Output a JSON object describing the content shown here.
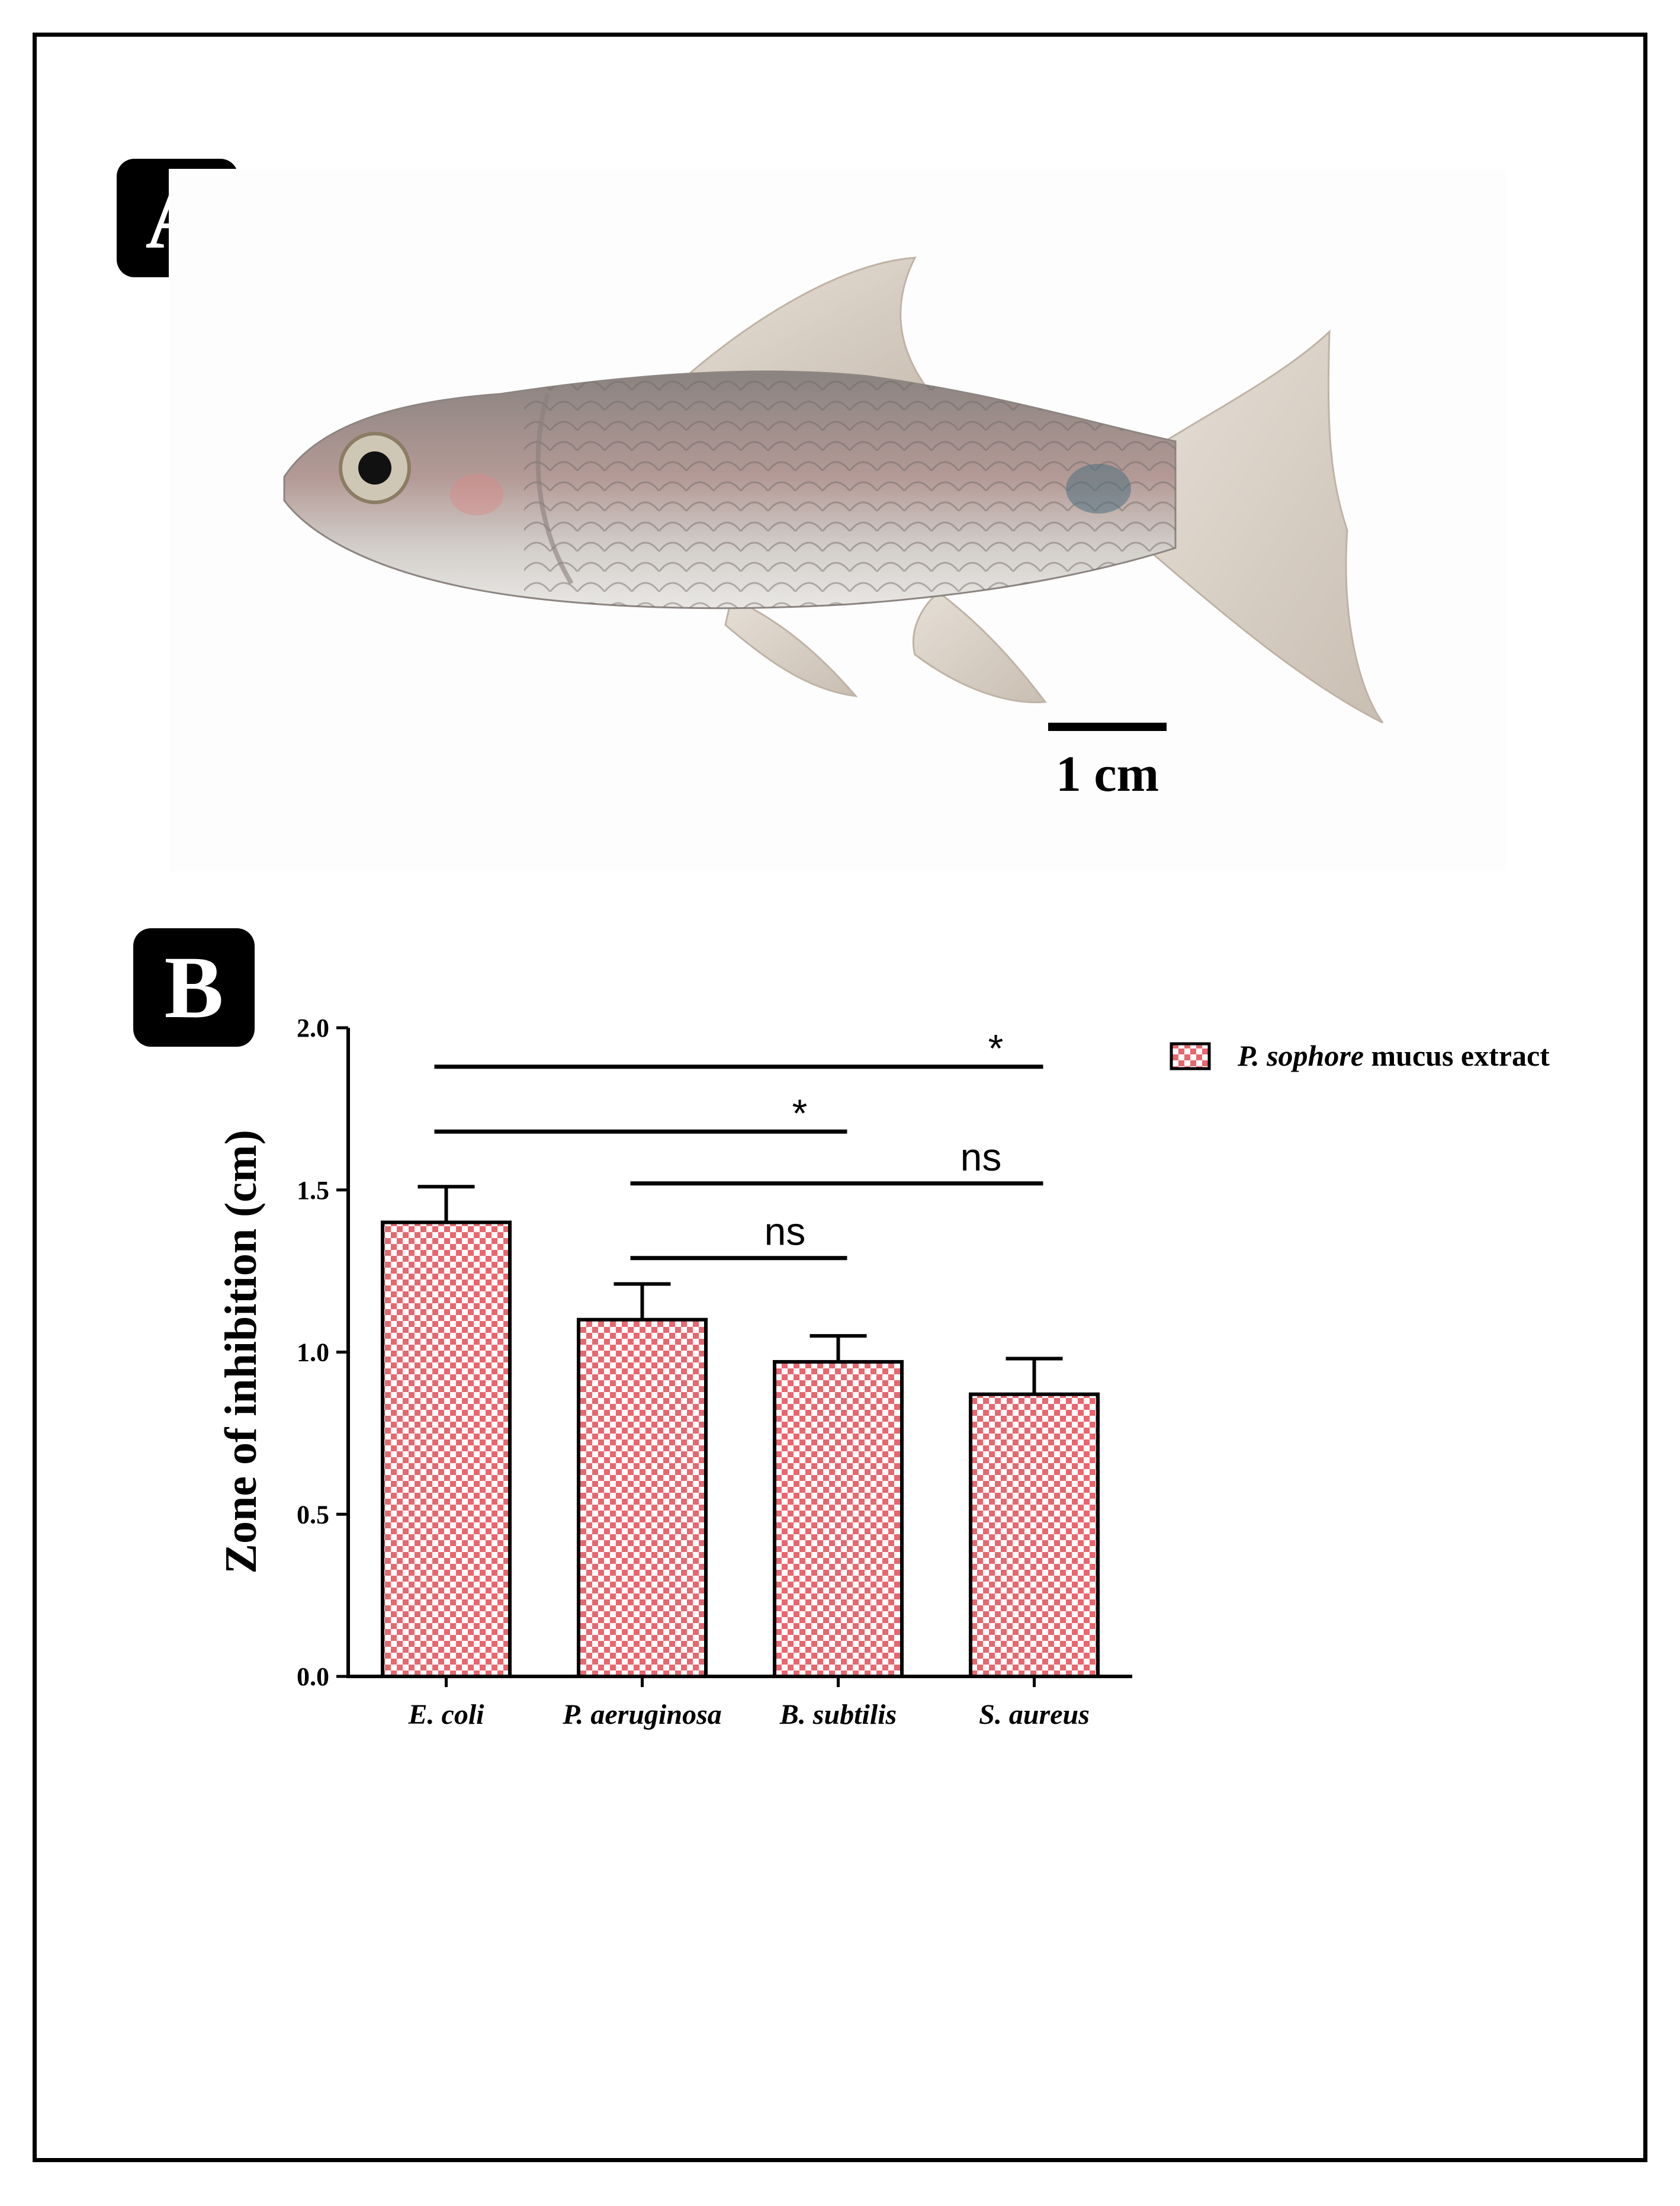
{
  "panels": {
    "a_label": "A",
    "b_label": "B"
  },
  "photo": {
    "scale_bar_label": "1 cm"
  },
  "chart_data": {
    "type": "bar",
    "categories": [
      "E. coli",
      "P. aeruginosa",
      "B. subtilis",
      "S. aureus"
    ],
    "series": [
      {
        "name": "P. sophore mucus extract",
        "values": [
          1.4,
          1.1,
          0.97,
          0.87
        ],
        "errors": [
          0.11,
          0.11,
          0.08,
          0.11
        ]
      }
    ],
    "ylabel": "Zone of inhibition (cm)",
    "xlabel": "",
    "ylim": [
      0,
      2.0
    ],
    "yticks": [
      "0.0",
      "0.5",
      "1.0",
      "1.5",
      "2.0"
    ],
    "legend": {
      "position": "top-right",
      "species": "P. sophore",
      "rest": " mucus extract"
    },
    "significance": [
      {
        "from": 0,
        "to": 3,
        "label": "*"
      },
      {
        "from": 0,
        "to": 2,
        "label": "*"
      },
      {
        "from": 1,
        "to": 3,
        "label": "ns"
      },
      {
        "from": 1,
        "to": 2,
        "label": "ns"
      }
    ],
    "bar_color": "#e8676f",
    "grid": false
  }
}
